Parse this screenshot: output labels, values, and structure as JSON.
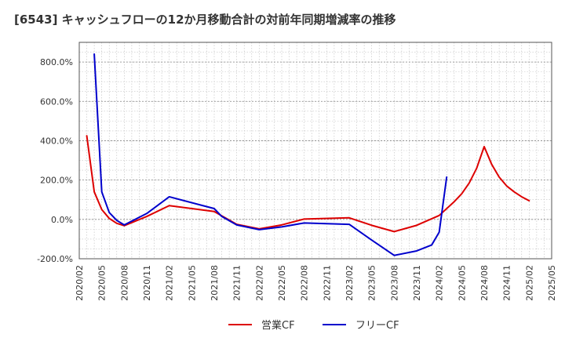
{
  "chart_data": {
    "type": "line",
    "title": "[6543]  キャッシュフローの12か月移動合計の対前年同期増減率の推移",
    "xlabel": "",
    "ylabel": "",
    "ylim": [
      -200,
      900
    ],
    "y_ticks": [
      {
        "value": 800,
        "label": "800.0%"
      },
      {
        "value": 600,
        "label": "600.0%"
      },
      {
        "value": 400,
        "label": "400.0%"
      },
      {
        "value": 200,
        "label": "200.0%"
      },
      {
        "value": 0,
        "label": "0.0%"
      },
      {
        "value": -200,
        "label": "-200.0%"
      }
    ],
    "x_range": [
      "2020/02",
      "2025/05"
    ],
    "x_ticks": [
      "2020/02",
      "2020/05",
      "2020/08",
      "2020/11",
      "2021/02",
      "2021/05",
      "2021/08",
      "2021/11",
      "2022/02",
      "2022/05",
      "2022/08",
      "2022/11",
      "2023/02",
      "2023/05",
      "2023/08",
      "2023/11",
      "2024/02",
      "2024/05",
      "2024/08",
      "2024/11",
      "2025/02",
      "2025/05"
    ],
    "grid": true,
    "legend_position": "bottom",
    "series": [
      {
        "name": "営業CF",
        "color": "#dd0000",
        "points": [
          {
            "x": "2020/03",
            "y": 425
          },
          {
            "x": "2020/04",
            "y": 140
          },
          {
            "x": "2020/05",
            "y": 50
          },
          {
            "x": "2020/06",
            "y": 5
          },
          {
            "x": "2020/07",
            "y": -20
          },
          {
            "x": "2020/08",
            "y": -32
          },
          {
            "x": "2020/11",
            "y": 15
          },
          {
            "x": "2021/02",
            "y": 70
          },
          {
            "x": "2021/08",
            "y": 40
          },
          {
            "x": "2021/09",
            "y": 18
          },
          {
            "x": "2021/11",
            "y": -25
          },
          {
            "x": "2022/02",
            "y": -48
          },
          {
            "x": "2022/05",
            "y": -28
          },
          {
            "x": "2022/08",
            "y": 2
          },
          {
            "x": "2023/02",
            "y": 8
          },
          {
            "x": "2023/05",
            "y": -30
          },
          {
            "x": "2023/08",
            "y": -62
          },
          {
            "x": "2023/11",
            "y": -30
          },
          {
            "x": "2024/02",
            "y": 20
          },
          {
            "x": "2024/04",
            "y": 90
          },
          {
            "x": "2024/05",
            "y": 130
          },
          {
            "x": "2024/06",
            "y": 185
          },
          {
            "x": "2024/07",
            "y": 260
          },
          {
            "x": "2024/08",
            "y": 370
          },
          {
            "x": "2024/09",
            "y": 280
          },
          {
            "x": "2024/10",
            "y": 215
          },
          {
            "x": "2024/11",
            "y": 170
          },
          {
            "x": "2024/12",
            "y": 140
          },
          {
            "x": "2025/01",
            "y": 115
          },
          {
            "x": "2025/02",
            "y": 95
          }
        ]
      },
      {
        "name": "フリーCF",
        "color": "#0000cc",
        "points": [
          {
            "x": "2020/04",
            "y": 840
          },
          {
            "x": "2020/05",
            "y": 140
          },
          {
            "x": "2020/06",
            "y": 35
          },
          {
            "x": "2020/07",
            "y": -5
          },
          {
            "x": "2020/08",
            "y": -28
          },
          {
            "x": "2020/11",
            "y": 30
          },
          {
            "x": "2021/02",
            "y": 115
          },
          {
            "x": "2021/08",
            "y": 55
          },
          {
            "x": "2021/09",
            "y": 15
          },
          {
            "x": "2021/11",
            "y": -28
          },
          {
            "x": "2022/02",
            "y": -52
          },
          {
            "x": "2022/05",
            "y": -38
          },
          {
            "x": "2022/08",
            "y": -18
          },
          {
            "x": "2023/02",
            "y": -25
          },
          {
            "x": "2023/05",
            "y": -105
          },
          {
            "x": "2023/08",
            "y": -183
          },
          {
            "x": "2023/11",
            "y": -160
          },
          {
            "x": "2024/01",
            "y": -130
          },
          {
            "x": "2024/02",
            "y": -65
          },
          {
            "x": "2024/03",
            "y": 215
          }
        ]
      }
    ]
  }
}
